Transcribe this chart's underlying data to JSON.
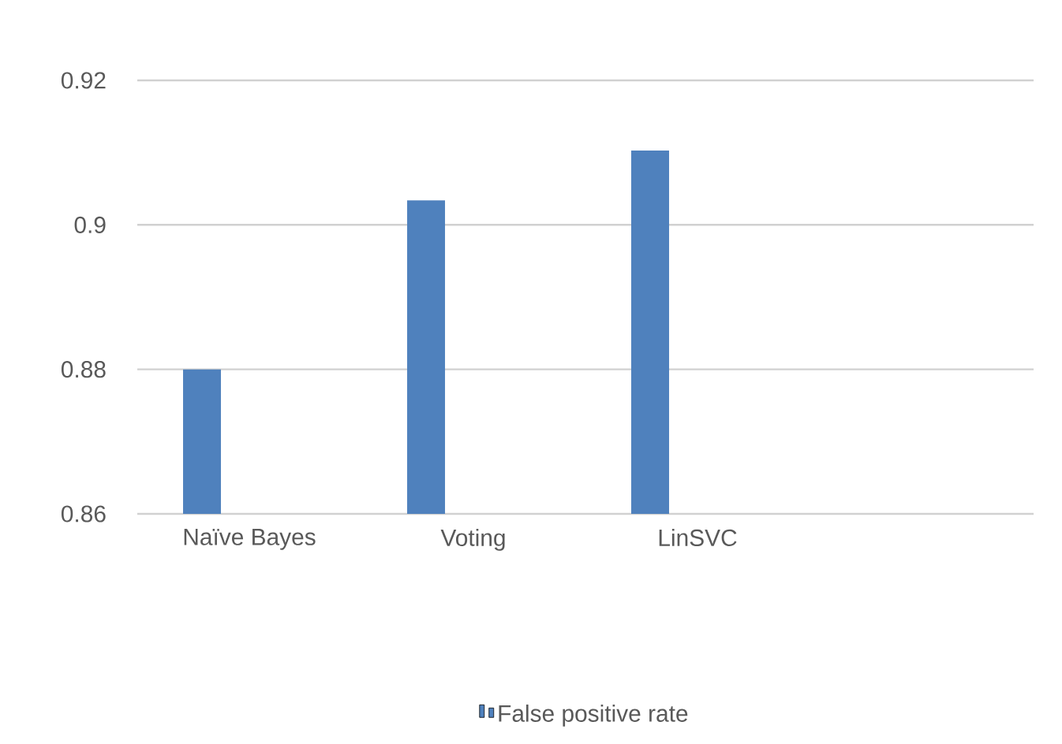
{
  "chart_data": {
    "type": "bar",
    "categories": [
      "Naïve Bayes",
      "Voting",
      "LinSVC",
      null
    ],
    "series": [
      {
        "name": "False positive rate",
        "color": "#4f81bd",
        "values": [
          0.88,
          0.9034,
          0.9103,
          null
        ]
      }
    ],
    "ylim": [
      0.86,
      0.92
    ],
    "yticks": [
      0.86,
      0.88,
      0.9,
      0.92
    ],
    "grid": "y",
    "legend": "bottom"
  }
}
